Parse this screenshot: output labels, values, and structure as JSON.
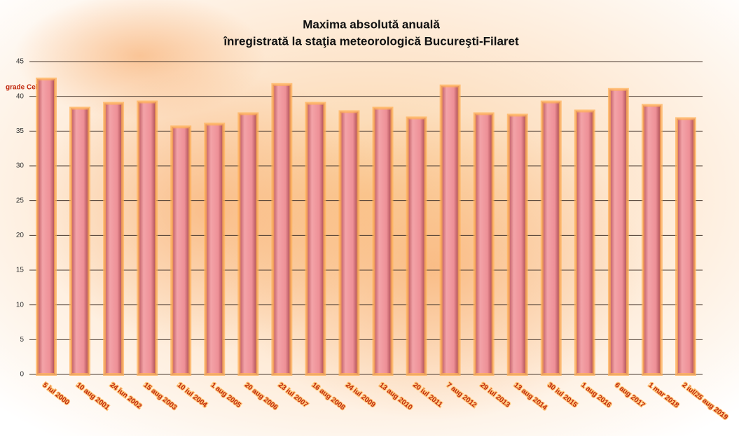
{
  "chart_data": {
    "type": "bar",
    "title": "Maxima absolută anuală",
    "subtitle": "înregistrată la staţia meteorologică Bucureşti-Filaret",
    "y_label": "grade Celsius",
    "categories": [
      "5 iul 2000",
      "10 aug 2001",
      "24 iun 2002",
      "15 aug 2003",
      "10 iul 2004",
      "1 aug 2005",
      "20 aug 2006",
      "23 iul 2007",
      "16 aug 2008",
      "24 iul 2009",
      "13 aug 2010",
      "20 iul 2011",
      "7 aug 2012",
      "29 iul 2013",
      "13 aug 2014",
      "30 iul 2015",
      "1 aug 2016",
      "6 aug 2017",
      "1 mar 2018",
      "2 iul/25 aug 2019"
    ],
    "values": [
      42.5,
      38.3,
      39.0,
      39.2,
      35.6,
      36.0,
      37.5,
      41.7,
      39.0,
      37.8,
      38.3,
      36.9,
      41.5,
      37.5,
      37.3,
      39.2,
      37.9,
      41.0,
      38.7,
      36.8
    ],
    "color": "#ee9097",
    "ylim": [
      0,
      45
    ],
    "yticks": [
      0,
      5,
      10,
      15,
      20,
      25,
      30,
      35,
      40,
      45
    ],
    "grid": true
  }
}
